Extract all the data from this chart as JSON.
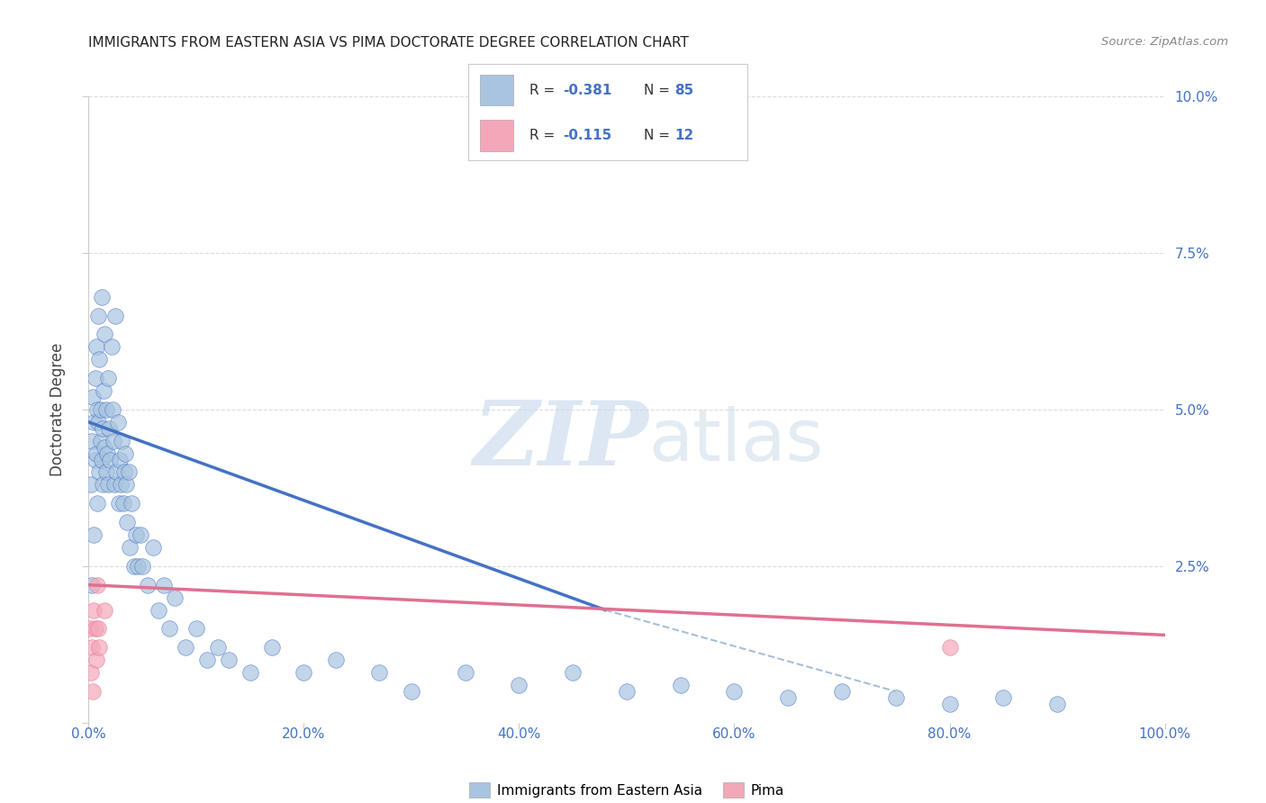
{
  "title": "IMMIGRANTS FROM EASTERN ASIA VS PIMA DOCTORATE DEGREE CORRELATION CHART",
  "source": "Source: ZipAtlas.com",
  "ylabel": "Doctorate Degree",
  "xlim": [
    0,
    1.0
  ],
  "ylim": [
    0,
    0.1
  ],
  "xtick_vals": [
    0.0,
    0.2,
    0.4,
    0.6,
    0.8,
    1.0
  ],
  "xtick_labels": [
    "0.0%",
    "20.0%",
    "40.0%",
    "60.0%",
    "80.0%",
    "100.0%"
  ],
  "ytick_vals": [
    0.0,
    0.025,
    0.05,
    0.075,
    0.1
  ],
  "ytick_labels": [
    "",
    "2.5%",
    "5.0%",
    "7.5%",
    "10.0%"
  ],
  "blue_color": "#a8c4e0",
  "pink_color": "#f4a7b9",
  "blue_line_color": "#4472c4",
  "pink_line_color": "#e07090",
  "dash_line_color": "#a8bfd8",
  "legend_blue_label": "Immigrants from Eastern Asia",
  "legend_pink_label": "Pima",
  "r_blue": "-0.381",
  "n_blue": "85",
  "r_pink": "-0.115",
  "n_pink": "12",
  "blue_scatter_x": [
    0.002,
    0.003,
    0.003,
    0.004,
    0.005,
    0.005,
    0.006,
    0.006,
    0.007,
    0.007,
    0.008,
    0.008,
    0.009,
    0.009,
    0.01,
    0.01,
    0.011,
    0.011,
    0.012,
    0.012,
    0.013,
    0.013,
    0.014,
    0.015,
    0.015,
    0.016,
    0.016,
    0.017,
    0.018,
    0.018,
    0.019,
    0.02,
    0.021,
    0.022,
    0.023,
    0.024,
    0.025,
    0.026,
    0.027,
    0.028,
    0.029,
    0.03,
    0.031,
    0.032,
    0.033,
    0.034,
    0.035,
    0.036,
    0.037,
    0.038,
    0.04,
    0.042,
    0.044,
    0.046,
    0.048,
    0.05,
    0.055,
    0.06,
    0.065,
    0.07,
    0.075,
    0.08,
    0.09,
    0.1,
    0.11,
    0.12,
    0.13,
    0.15,
    0.17,
    0.2,
    0.23,
    0.27,
    0.3,
    0.35,
    0.4,
    0.45,
    0.5,
    0.55,
    0.6,
    0.65,
    0.7,
    0.75,
    0.8,
    0.85,
    0.9
  ],
  "blue_scatter_y": [
    0.038,
    0.022,
    0.045,
    0.052,
    0.03,
    0.048,
    0.042,
    0.055,
    0.043,
    0.06,
    0.05,
    0.035,
    0.048,
    0.065,
    0.04,
    0.058,
    0.045,
    0.05,
    0.042,
    0.068,
    0.047,
    0.038,
    0.053,
    0.044,
    0.062,
    0.04,
    0.05,
    0.043,
    0.055,
    0.038,
    0.047,
    0.042,
    0.06,
    0.05,
    0.045,
    0.038,
    0.065,
    0.04,
    0.048,
    0.035,
    0.042,
    0.038,
    0.045,
    0.035,
    0.04,
    0.043,
    0.038,
    0.032,
    0.04,
    0.028,
    0.035,
    0.025,
    0.03,
    0.025,
    0.03,
    0.025,
    0.022,
    0.028,
    0.018,
    0.022,
    0.015,
    0.02,
    0.012,
    0.015,
    0.01,
    0.012,
    0.01,
    0.008,
    0.012,
    0.008,
    0.01,
    0.008,
    0.005,
    0.008,
    0.006,
    0.008,
    0.005,
    0.006,
    0.005,
    0.004,
    0.005,
    0.004,
    0.003,
    0.004,
    0.003
  ],
  "pink_scatter_x": [
    0.001,
    0.002,
    0.003,
    0.004,
    0.005,
    0.006,
    0.007,
    0.008,
    0.009,
    0.01,
    0.015,
    0.8
  ],
  "pink_scatter_y": [
    0.015,
    0.008,
    0.012,
    0.005,
    0.018,
    0.015,
    0.01,
    0.022,
    0.015,
    0.012,
    0.018,
    0.012
  ],
  "blue_trend_x": [
    0.0,
    0.48
  ],
  "blue_trend_y": [
    0.048,
    0.018
  ],
  "dash_trend_x": [
    0.48,
    0.75
  ],
  "dash_trend_y": [
    0.018,
    0.005
  ],
  "pink_trend_x": [
    0.0,
    1.0
  ],
  "pink_trend_y": [
    0.022,
    0.014
  ],
  "watermark_zip": "ZIP",
  "watermark_atlas": "atlas",
  "background_color": "#ffffff",
  "grid_color": "#dddddd",
  "tick_color": "#4472c4",
  "title_color": "#222222",
  "source_color": "#888888"
}
